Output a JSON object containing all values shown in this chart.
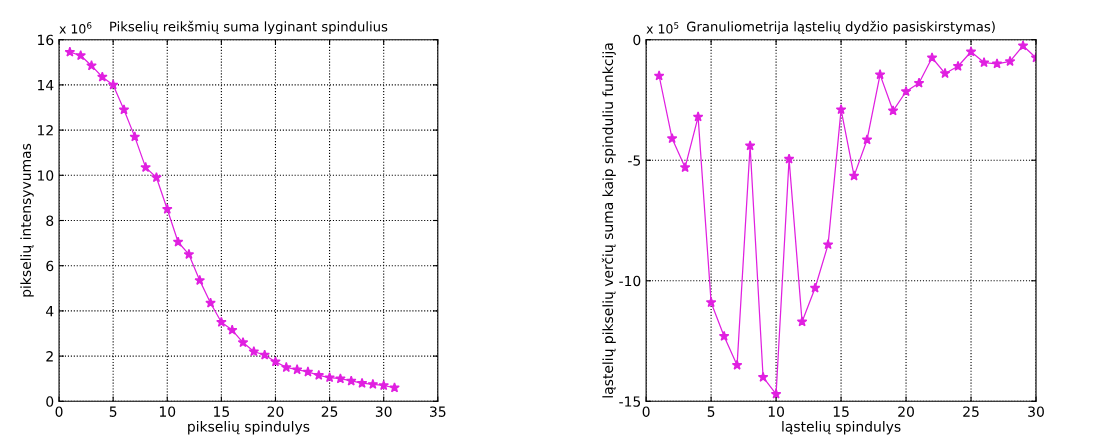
{
  "chart_data": [
    {
      "type": "line",
      "title": "Pikselių reikšmių suma lyginant spindulius",
      "xlabel": "pikselių spindulys",
      "ylabel": "pikselių intensyvumas",
      "x": [
        1,
        2,
        3,
        4,
        5,
        6,
        7,
        8,
        9,
        10,
        11,
        12,
        13,
        14,
        15,
        16,
        17,
        18,
        19,
        20,
        21,
        22,
        23,
        24,
        25,
        26,
        27,
        28,
        29,
        30,
        31
      ],
      "series": [
        {
          "color": "#e020e0",
          "values": [
            15.45,
            15.3,
            14.85,
            14.35,
            14.0,
            12.9,
            11.7,
            10.35,
            9.9,
            8.5,
            7.05,
            6.5,
            5.35,
            4.35,
            3.5,
            3.15,
            2.6,
            2.2,
            2.05,
            1.75,
            1.5,
            1.4,
            1.3,
            1.15,
            1.05,
            1.0,
            0.9,
            0.8,
            0.75,
            0.7,
            0.6
          ]
        }
      ],
      "xlim": [
        0,
        35
      ],
      "xticks": [
        0,
        5,
        10,
        15,
        20,
        25,
        30,
        35
      ],
      "ylim": [
        0,
        16
      ],
      "yticks": [
        0,
        2,
        4,
        6,
        8,
        10,
        12,
        14,
        16
      ],
      "grid": true,
      "marker": "star",
      "line_style": "solid",
      "annotations": [
        "x 10$^{6}$"
      ]
    },
    {
      "type": "line",
      "title": "Granuliometrija ląstelių dydžio pasiskirstymas)",
      "xlabel": "ląstelių spindulys",
      "ylabel": "ląstelių pikselių verčių suma kaip spinduliu funkcija",
      "x": [
        1,
        2,
        3,
        4,
        5,
        6,
        7,
        8,
        9,
        10,
        11,
        12,
        13,
        14,
        15,
        16,
        17,
        18,
        19,
        20,
        21,
        22,
        23,
        24,
        25,
        26,
        27,
        28,
        29,
        30
      ],
      "series": [
        {
          "color": "#e020e0",
          "values": [
            -1.5,
            -4.1,
            -5.3,
            -3.2,
            -10.9,
            -12.3,
            -13.5,
            -4.4,
            -14.0,
            -14.7,
            -4.95,
            -11.7,
            -10.3,
            -8.5,
            -2.9,
            -5.65,
            -4.15,
            -1.45,
            -2.95,
            -2.15,
            -1.8,
            -0.75,
            -1.4,
            -1.1,
            -0.5,
            -0.95,
            -1.0,
            -0.9,
            -0.25,
            -0.75
          ]
        }
      ],
      "xlim": [
        0,
        30
      ],
      "xticks": [
        0,
        5,
        10,
        15,
        20,
        25,
        30
      ],
      "ylim": [
        -15,
        0
      ],
      "yticks": [
        -15,
        -10,
        -5,
        0
      ],
      "grid": true,
      "marker": "star",
      "line_style": "solid",
      "annotations": [
        "x 10$^{5}$"
      ]
    }
  ]
}
